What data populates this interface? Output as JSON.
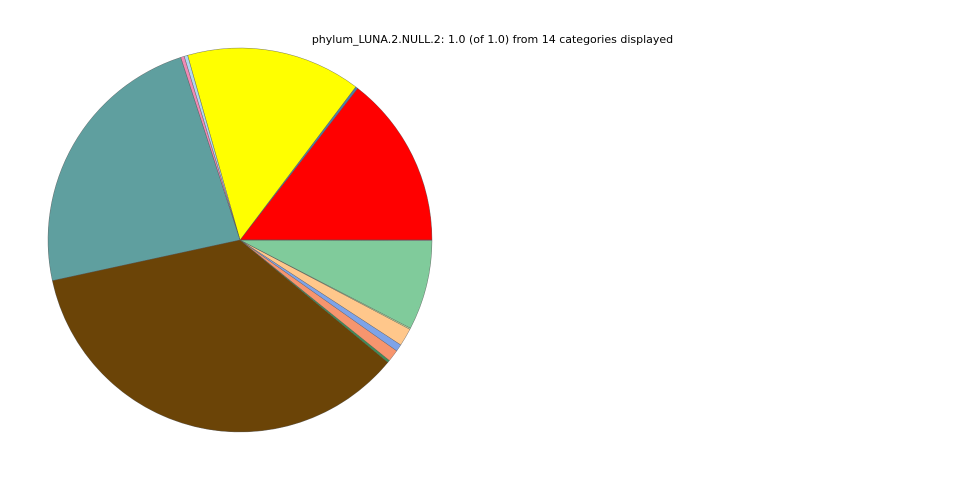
{
  "chart_data": {
    "type": "pie",
    "title": "phylum_LUNA.2.NULL.2: 1.0 (of 1.0) from 14 categories displayed",
    "start_angle_deg": 0,
    "direction": "counterclockwise",
    "legend": "none",
    "slices": [
      {
        "value": 0.145,
        "color": "#ff0000"
      },
      {
        "value": 0.002,
        "color": "#4e7fa8"
      },
      {
        "value": 0.147,
        "color": "#ffff00"
      },
      {
        "value": 0.003,
        "color": "#b0d7f0"
      },
      {
        "value": 0.003,
        "color": "#f08ab4"
      },
      {
        "value": 0.234,
        "color": "#5f9f9f"
      },
      {
        "value": 0.356,
        "color": "#6b4407"
      },
      {
        "value": 0.002,
        "color": "#3e8e58"
      },
      {
        "value": 0.01,
        "color": "#f7956e"
      },
      {
        "value": 0.006,
        "color": "#7ea3e8"
      },
      {
        "value": 0.015,
        "color": "#ffc78b"
      },
      {
        "value": 0.001,
        "color": "#bfe6a3"
      },
      {
        "value": 0.0755,
        "color": "#80cb9b"
      },
      {
        "value": 0.0005,
        "color": "#cccccc"
      }
    ]
  }
}
